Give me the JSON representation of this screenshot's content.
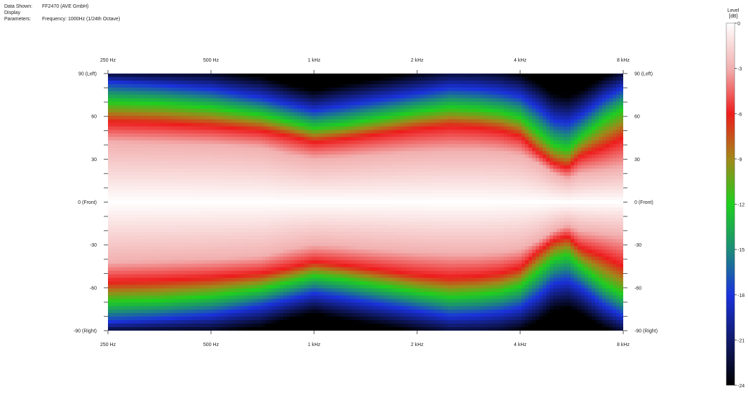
{
  "header": {
    "data_shown_label": "Data Shown:",
    "data_shown_value": "FF2470 (AVE GmbH)",
    "display_params_label": "Display Parameters:",
    "display_params_value": "Frequency: 1000Hz (1/24th Octave)"
  },
  "colorbar": {
    "title_line1": "Level",
    "title_line2": "[dB]",
    "ticks": [
      "0",
      "-3",
      "-6",
      "-9",
      "-12",
      "-15",
      "-18",
      "-21",
      "-24"
    ],
    "range_db": [
      -24,
      0
    ],
    "stops": [
      {
        "db": 0,
        "color": "#ffffff"
      },
      {
        "db": -3,
        "color": "#f2b0b0"
      },
      {
        "db": -6,
        "color": "#ee1c1c"
      },
      {
        "db": -9,
        "color": "#a0881a"
      },
      {
        "db": -12,
        "color": "#1ecf1e"
      },
      {
        "db": -15,
        "color": "#1c8c78"
      },
      {
        "db": -18,
        "color": "#1a32dc"
      },
      {
        "db": -21,
        "color": "#101a6a"
      },
      {
        "db": -24,
        "color": "#000000"
      }
    ]
  },
  "chart_data": {
    "type": "heatmap",
    "title": "",
    "x_axis": {
      "scale": "log2",
      "range_hz": [
        250,
        8000
      ],
      "ticks": [
        {
          "hz": 250,
          "label": "250 Hz"
        },
        {
          "hz": 500,
          "label": "500 Hz"
        },
        {
          "hz": 1000,
          "label": "1 kHz"
        },
        {
          "hz": 2000,
          "label": "2 kHz"
        },
        {
          "hz": 4000,
          "label": "4 kHz"
        },
        {
          "hz": 8000,
          "label": "8 kHz"
        }
      ]
    },
    "y_axis": {
      "range_deg": [
        -90,
        90
      ],
      "ticks": [
        {
          "deg": 90,
          "label": "90 (Left)"
        },
        {
          "deg": 60,
          "label": "60"
        },
        {
          "deg": 30,
          "label": "30"
        },
        {
          "deg": 0,
          "label": "0 (Front)"
        },
        {
          "deg": -30,
          "label": "-30"
        },
        {
          "deg": -60,
          "label": "-60"
        },
        {
          "deg": -90,
          "label": "-90 (Right)"
        }
      ],
      "minor_step_deg": 10
    },
    "contours": {
      "description_note": "angle (deg, positive side; mirrored for negative) at which level reaches each dB value, per frequency",
      "freq_hz": [
        250,
        350,
        500,
        700,
        850,
        1000,
        1200,
        1500,
        2000,
        2500,
        3000,
        3500,
        4000,
        4500,
        5000,
        5500,
        6000,
        7000,
        8000
      ],
      "deg_at_minus3db": [
        42,
        41,
        40,
        38,
        33,
        30,
        31,
        33,
        35,
        36,
        36,
        35,
        33,
        27,
        20,
        16,
        20,
        22,
        24
      ],
      "deg_at_minus6db": [
        56,
        55,
        53,
        50,
        46,
        42,
        44,
        47,
        51,
        53,
        52,
        50,
        46,
        35,
        27,
        24,
        32,
        38,
        45
      ],
      "deg_at_minus12db": [
        70,
        69,
        66,
        61,
        56,
        52,
        54,
        58,
        63,
        66,
        65,
        63,
        59,
        49,
        40,
        37,
        45,
        57,
        65
      ],
      "deg_at_minus18db": [
        84,
        82,
        79,
        73,
        68,
        64,
        67,
        71,
        76,
        80,
        79,
        77,
        74,
        66,
        57,
        55,
        60,
        72,
        80
      ],
      "deg_at_minus24db": [
        92,
        92,
        92,
        88,
        82,
        78,
        82,
        86,
        91,
        94,
        94,
        93,
        90,
        84,
        76,
        74,
        78,
        88,
        94
      ]
    }
  }
}
